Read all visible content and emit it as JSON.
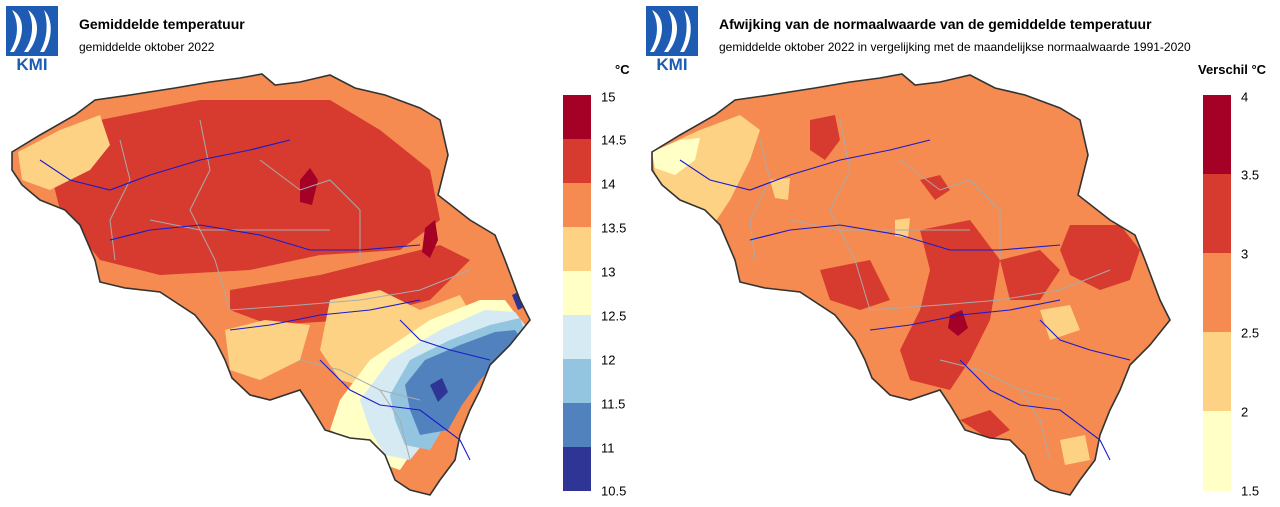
{
  "logo_text": "KMI",
  "left": {
    "title": "Gemiddelde temperatuur",
    "subtitle": "gemiddelde oktober 2022",
    "unit": "°C",
    "legend": {
      "ticks": [
        "15",
        "14.5",
        "14",
        "13.5",
        "13",
        "12.5",
        "12",
        "11.5",
        "11",
        "10.5"
      ],
      "colors": [
        "#a50026",
        "#d73027",
        "#f46d43",
        "#fdae61",
        "#fee090",
        "#ffffbf",
        "#e0f3f8",
        "#abd9e9",
        "#74add1",
        "#4575b4",
        "#313695"
      ],
      "bands": [
        {
          "range": "14.5-15",
          "color": "#a50026"
        },
        {
          "range": "14-14.5",
          "color": "#d73b2f"
        },
        {
          "range": "13.5-14",
          "color": "#f58b50"
        },
        {
          "range": "13-13.5",
          "color": "#fdd285"
        },
        {
          "range": "12.5-13",
          "color": "#ffffc6"
        },
        {
          "range": "12-12.5",
          "color": "#d5eaf2"
        },
        {
          "range": "11.5-12",
          "color": "#93c4e0"
        },
        {
          "range": "11-11.5",
          "color": "#5282be"
        },
        {
          "range": "10.5-11",
          "color": "#2f3594"
        }
      ]
    }
  },
  "right": {
    "title": "Afwijking van de normaalwaarde van de gemiddelde temperatuur",
    "subtitle": "gemiddelde oktober 2022 in vergelijking met de maandelijkse normaalwaarde 1991-2020",
    "unit": "Verschil °C",
    "legend": {
      "ticks": [
        "4",
        "3.5",
        "3",
        "2.5",
        "2",
        "1.5"
      ],
      "bands": [
        {
          "range": "3.5-4",
          "color": "#a50026"
        },
        {
          "range": "3-3.5",
          "color": "#d73b2f"
        },
        {
          "range": "2.5-3",
          "color": "#f58b50"
        },
        {
          "range": "2-2.5",
          "color": "#fdd285"
        },
        {
          "range": "1.5-2",
          "color": "#ffffc6"
        }
      ]
    }
  }
}
